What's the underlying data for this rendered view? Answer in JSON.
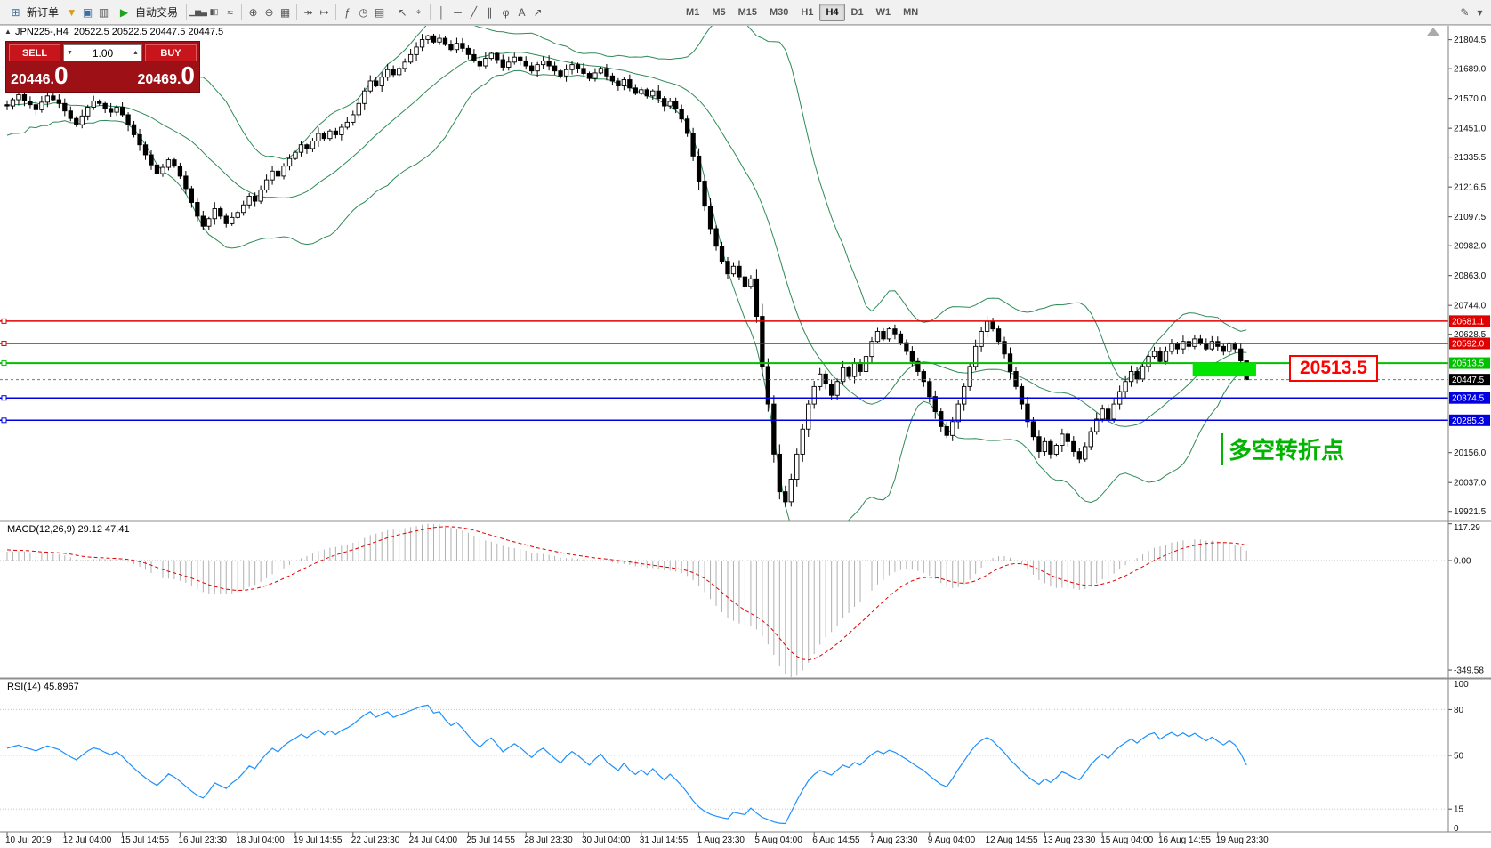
{
  "toolbar": {
    "new_order_label": "新订单",
    "autotrade_label": "自动交易",
    "timeframes": [
      "M1",
      "M5",
      "M15",
      "M30",
      "H1",
      "H4",
      "D1",
      "W1",
      "MN"
    ],
    "active_timeframe": "H4"
  },
  "icons": {
    "toggle_up": "▲",
    "caret_down": "▼",
    "caret_up": "▲",
    "new_order": "⊞",
    "funnel": "▼",
    "profiles": "▣",
    "alerts": "▥",
    "autotrade_play": "▶",
    "bar_chart": "▁▅▃",
    "candle_chart": "▮▯",
    "line_chart": "≈",
    "zoom_in": "⊕",
    "zoom_out": "⊖",
    "tile_windows": "▦",
    "auto_scroll": "↠",
    "chart_shift": "↦",
    "indicators": "ƒ",
    "periods": "◷",
    "templates": "▤",
    "cursor": "↖",
    "crosshair": "⌖",
    "vertical_line": "│",
    "horizontal_line": "─",
    "trend_line": "╱",
    "channel": "∥",
    "fibonacci": "φ",
    "text_tool": "A",
    "arrows_tool": "↗",
    "pencil": "✎",
    "more": "▾"
  },
  "chart_header": {
    "symbol_period": "JPN225-,H4",
    "ohlc": "20522.5 20522.5 20447.5 20447.5"
  },
  "trade_panel": {
    "sell_label": "SELL",
    "buy_label": "BUY",
    "volume": "1.00",
    "sell_price_main": "20446.",
    "sell_price_big": "0",
    "buy_price_main": "20469.",
    "buy_price_big": "0"
  },
  "indicator_labels": {
    "macd": "MACD(12,26,9) 29.12 47.41",
    "rsi": "RSI(14) 45.8967"
  },
  "annotations": {
    "price_callout": "20513.5",
    "turning_point": "多空转折点"
  },
  "chart_data": {
    "type": "candlestick",
    "symbol": "JPN225-",
    "period": "H4",
    "price_range": [
      19885,
      21860
    ],
    "price_axis_ticks": [
      21804.5,
      21689.0,
      21570.0,
      21451.0,
      21335.5,
      21216.5,
      21097.5,
      20982.0,
      20863.0,
      20744.0,
      20628.5,
      20156.0,
      20037.0,
      19921.5
    ],
    "hlines": [
      {
        "price": 20681.1,
        "label": "20681.1",
        "color": "#e00000",
        "width": 1.5
      },
      {
        "price": 20592.0,
        "label": "20592.0",
        "color": "#e00000",
        "width": 1.5
      },
      {
        "price": 20513.5,
        "label": "20513.5",
        "color": "#00c000",
        "width": 2
      },
      {
        "price": 20374.5,
        "label": "20374.5",
        "color": "#0000e0",
        "width": 1.5
      },
      {
        "price": 20285.3,
        "label": "20285.3",
        "color": "#0000e0",
        "width": 1.5
      }
    ],
    "current_price": {
      "price": 20447.5,
      "label": "20447.5",
      "color": "#000000"
    },
    "rect_object": {
      "from_index": 206,
      "to_index": 217,
      "price_top": 20513.5,
      "price_bottom": 20460,
      "color": "#00e400"
    },
    "bollinger": {
      "period": 20,
      "deviation": 2
    },
    "macd_params": [
      12,
      26,
      9
    ],
    "rsi_period": 14,
    "macd_axis": {
      "range": [
        -375,
        125
      ],
      "ticks": [
        {
          "v": 117.29,
          "label": "117.29"
        },
        {
          "v": 0,
          "label": "0.00"
        },
        {
          "v": -349.58,
          "label": "-349.58"
        }
      ]
    },
    "rsi_axis": {
      "ticks": [
        {
          "v": 100,
          "label": "100"
        },
        {
          "v": 80,
          "label": "80"
        },
        {
          "v": 50,
          "label": "50"
        },
        {
          "v": 15,
          "label": "15"
        },
        {
          "v": 0,
          "label": "0"
        }
      ],
      "levels": [
        80,
        50,
        15
      ]
    },
    "colors": {
      "bollinger": "#2e8b57",
      "macd_hist": "#b0b0b0",
      "macd_signal": "#e00000",
      "rsi_line": "#1e90ff"
    },
    "time_axis": [
      [
        0,
        "10 Jul 2019"
      ],
      [
        10,
        "12 Jul 04:00"
      ],
      [
        20,
        "15 Jul 14:55"
      ],
      [
        30,
        "16 Jul 23:30"
      ],
      [
        40,
        "18 Jul 04:00"
      ],
      [
        50,
        "19 Jul 14:55"
      ],
      [
        60,
        "22 Jul 23:30"
      ],
      [
        70,
        "24 Jul 04:00"
      ],
      [
        80,
        "25 Jul 14:55"
      ],
      [
        90,
        "28 Jul 23:30"
      ],
      [
        100,
        "30 Jul 04:00"
      ],
      [
        110,
        "31 Jul 14:55"
      ],
      [
        120,
        "1 Aug 23:30"
      ],
      [
        130,
        "5 Aug 04:00"
      ],
      [
        140,
        "6 Aug 14:55"
      ],
      [
        150,
        "7 Aug 23:30"
      ],
      [
        160,
        "9 Aug 04:00"
      ],
      [
        170,
        "12 Aug 14:55"
      ],
      [
        180,
        "13 Aug 23:30"
      ],
      [
        190,
        "15 Aug 04:00"
      ],
      [
        200,
        "16 Aug 14:55"
      ],
      [
        210,
        "19 Aug 23:30"
      ]
    ],
    "warmup_closes": [
      21380,
      21480,
      21600,
      21520,
      21420,
      21560,
      21660,
      21580,
      21460,
      21540,
      21640,
      21560,
      21470,
      21530,
      21610,
      21540,
      21480,
      21520,
      21580,
      21545
    ],
    "closes": [
      21540,
      21565,
      21585,
      21560,
      21545,
      21525,
      21555,
      21580,
      21565,
      21550,
      21520,
      21490,
      21465,
      21500,
      21535,
      21560,
      21550,
      21530,
      21515,
      21535,
      21505,
      21465,
      21425,
      21385,
      21345,
      21305,
      21270,
      21295,
      21325,
      21300,
      21260,
      21210,
      21155,
      21100,
      21060,
      21090,
      21130,
      21100,
      21070,
      21095,
      21115,
      21145,
      21180,
      21160,
      21205,
      21245,
      21280,
      21260,
      21300,
      21330,
      21355,
      21385,
      21370,
      21400,
      21430,
      21410,
      21440,
      21425,
      21455,
      21475,
      21505,
      21550,
      21600,
      21640,
      21620,
      21655,
      21685,
      21665,
      21690,
      21715,
      21745,
      21775,
      21805,
      21820,
      21795,
      21810,
      21785,
      21765,
      21790,
      21770,
      21745,
      21720,
      21700,
      21730,
      21750,
      21725,
      21695,
      21715,
      21735,
      21720,
      21700,
      21680,
      21705,
      21720,
      21700,
      21680,
      21660,
      21685,
      21705,
      21690,
      21670,
      21650,
      21672,
      21690,
      21660,
      21640,
      21620,
      21645,
      21612,
      21590,
      21605,
      21580,
      21600,
      21570,
      21540,
      21558,
      21528,
      21488,
      21430,
      21340,
      21240,
      21140,
      21050,
      20980,
      20920,
      20870,
      20900,
      20858,
      20820,
      20850,
      20700,
      20500,
      20350,
      20150,
      20000,
      19960,
      20050,
      20150,
      20250,
      20350,
      20420,
      20470,
      20430,
      20385,
      20440,
      20495,
      20460,
      20515,
      20480,
      20540,
      20600,
      20640,
      20610,
      20650,
      20630,
      20595,
      20560,
      20520,
      20480,
      20440,
      20380,
      20320,
      20260,
      20225,
      20280,
      20350,
      20420,
      20500,
      20580,
      20640,
      20680,
      20650,
      20600,
      20550,
      20480,
      20420,
      20350,
      20280,
      20220,
      20160,
      20200,
      20150,
      20185,
      20230,
      20200,
      20160,
      20130,
      20180,
      20240,
      20290,
      20330,
      20290,
      20350,
      20400,
      20440,
      20480,
      20450,
      20500,
      20540,
      20560,
      20520,
      20560,
      20590,
      20570,
      20600,
      20580,
      20610,
      20590,
      20570,
      20600,
      20580,
      20560,
      20590,
      20570,
      20522.5,
      20447.5
    ]
  }
}
